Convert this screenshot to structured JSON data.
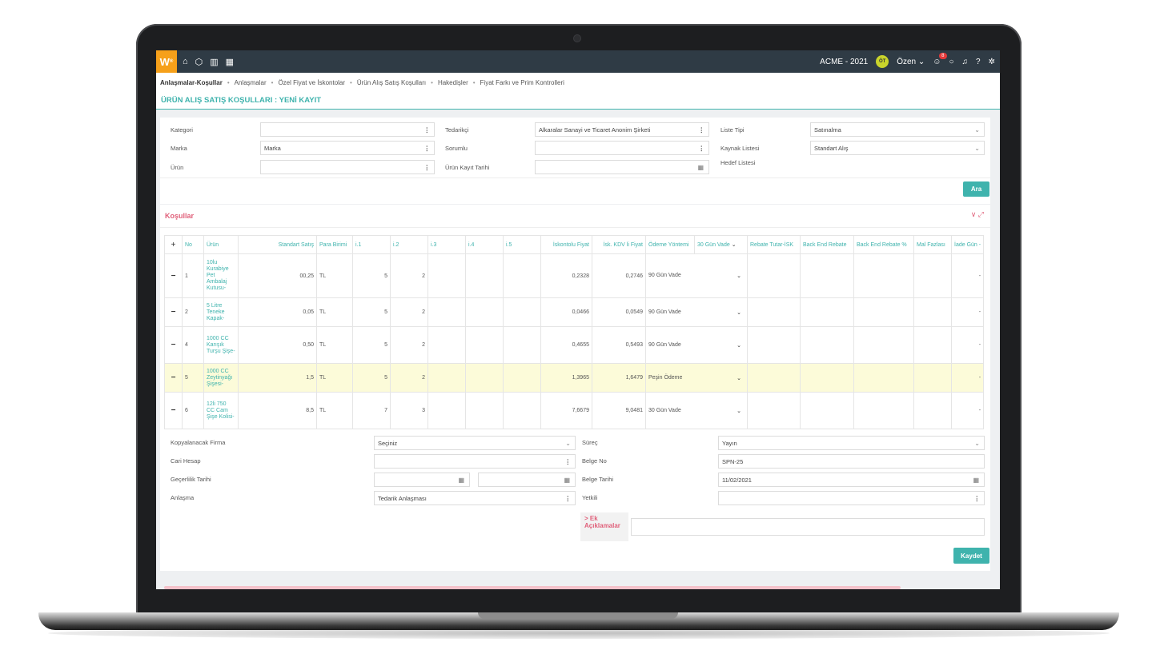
{
  "topbar": {
    "logo": "W",
    "logo_sup": "®",
    "company": "ACME - 2021",
    "avatar": "ÖT",
    "user": "Özen",
    "notif_count": "8",
    "icons": [
      "home-icon",
      "box-icon",
      "chart-icon",
      "calendar-icon"
    ]
  },
  "breadcrumbs": [
    "Anlaşmalar-Koşullar",
    "Anlaşmalar",
    "Özel Fiyat ve İskontolar",
    "Ürün Alış Satış Koşulları",
    "Hakedişler",
    "Fiyat Farkı ve Prim Kontrolleri"
  ],
  "page_title": "ÜRÜN ALIŞ SATIŞ KOŞULLARI : YENİ KAYIT",
  "filters": {
    "kategori_label": "Kategori",
    "kategori_value": "",
    "marka_label": "Marka",
    "marka_value": "Marka",
    "urun_label": "Ürün",
    "urun_value": "",
    "tedarikci_label": "Tedarikçi",
    "tedarikci_value": "Alkaralar Sanayi ve Ticaret Anonim Şirketi",
    "sorumlu_label": "Sorumlu",
    "sorumlu_value": "",
    "kayit_tarihi_label": "Ürün Kayıt Tarihi",
    "kayit_tarihi_value": "",
    "liste_tipi_label": "Liste Tipi",
    "liste_tipi_value": "Satınalma",
    "kaynak_label": "Kaynak Listesi",
    "kaynak_value": "Standart Alış",
    "hedef_label": "Hedef Listesi",
    "search_button": "Ara"
  },
  "conditions": {
    "title": "Koşullar",
    "headers": [
      "+",
      "No",
      "Ürün",
      "Standart Satış",
      "Para Birimi",
      "i.1",
      "i.2",
      "i.3",
      "i.4",
      "i.5",
      "İskontolu Fiyat",
      "İsk. KDV li Fiyat",
      "Ödeme Yöntemi",
      "30 Gün Vade",
      "Rebate Tutar-İSK",
      "Back End Rebate",
      "Back End Rebate %",
      "Mal Fazlası",
      "İade Gün -"
    ],
    "rows": [
      {
        "no": "1",
        "urun": "10lu Kurabiye Pet Ambalaj Kutusu-",
        "std": "00,25",
        "pb": "TL",
        "i1": "5",
        "i2": "2",
        "isk": "0,2328",
        "kdv": "0,2746",
        "odeme": "90 Gün Vade",
        "iade": "-",
        "highlight": false
      },
      {
        "no": "2",
        "urun": "5 Litre Teneke Kapak-",
        "std": "0,05",
        "pb": "TL",
        "i1": "5",
        "i2": "2",
        "isk": "0,0466",
        "kdv": "0,0549",
        "odeme": "90 Gün Vade",
        "iade": "-",
        "highlight": false
      },
      {
        "no": "4",
        "urun": "1000 CC Karışık Turşu Şişe-",
        "std": "0,50",
        "pb": "TL",
        "i1": "5",
        "i2": "2",
        "isk": "0,4655",
        "kdv": "0,5493",
        "odeme": "90 Gün Vade",
        "iade": "-",
        "highlight": false
      },
      {
        "no": "5",
        "urun": "1000 CC Zeytinyağı Şişesi-",
        "std": "1,5",
        "pb": "TL",
        "i1": "5",
        "i2": "2",
        "isk": "1,3965",
        "kdv": "1,6479",
        "odeme": "Peşin Ödeme",
        "iade": "-",
        "highlight": true
      },
      {
        "no": "6",
        "urun": "12li 750 CC Cam Şişe Kolisi-",
        "std": "8,5",
        "pb": "TL",
        "i1": "7",
        "i2": "3",
        "isk": "7,6679",
        "kdv": "9,0481",
        "odeme": "30 Gün Vade",
        "iade": "-",
        "highlight": false
      }
    ]
  },
  "bottom": {
    "kopya_label": "Kopyalanacak Firma",
    "kopya_value": "Seçiniz",
    "cari_label": "Cari Hesap",
    "cari_value": "",
    "gecerlilik_label": "Geçerlilik Tarihi",
    "anlasma_label": "Anlaşma",
    "anlasma_value": "Tedarik Anlaşması",
    "surec_label": "Süreç",
    "surec_value": "Yayın",
    "belge_no_label": "Belge No",
    "belge_no_value": "SPN-25",
    "belge_tarihi_label": "Belge Tarihi",
    "belge_tarihi_value": "11/02/2021",
    "yetkili_label": "Yetkili",
    "yetkili_value": "",
    "ek_label": "> Ek Açıklamalar",
    "save_button": "Kaydet"
  }
}
